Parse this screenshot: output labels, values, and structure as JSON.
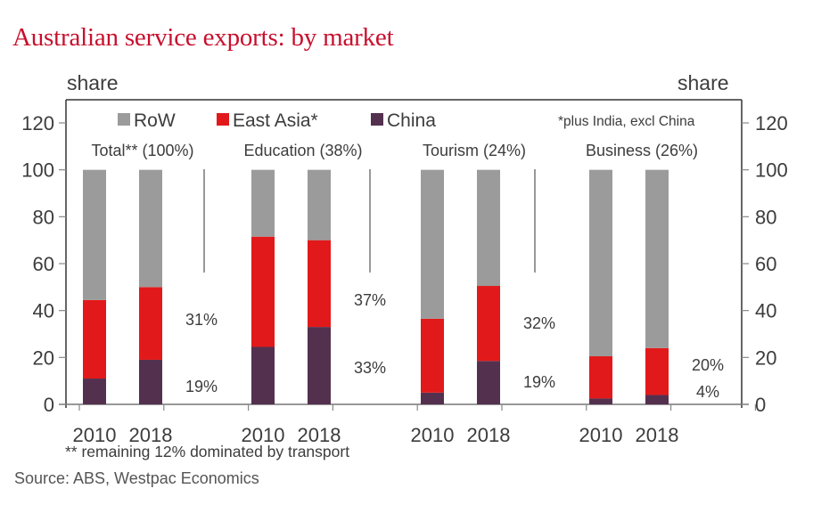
{
  "chart_data": {
    "type": "bar",
    "stacked": true,
    "title": "Australian service exports: by market",
    "ylabel_left": "share",
    "ylabel_right": "share",
    "ylim": [
      0,
      120
    ],
    "yticks": [
      0,
      20,
      40,
      60,
      80,
      100,
      120
    ],
    "grid": false,
    "legend_position": "top",
    "legend_note": "*plus India, excl China",
    "groups": [
      {
        "label": "Total** (100%)",
        "labels_2018": {
          "east_asia": "31%",
          "china": "19%"
        }
      },
      {
        "label": "Education (38%)",
        "labels_2018": {
          "east_asia": "37%",
          "china": "33%"
        }
      },
      {
        "label": "Tourism (24%)",
        "labels_2018": {
          "east_asia": "32%",
          "china": "19%"
        }
      },
      {
        "label": "Business (26%)",
        "labels_2018": {
          "east_asia": "20%",
          "china": "4%"
        }
      }
    ],
    "categories": [
      "2010",
      "2018"
    ],
    "series": [
      {
        "name": "China",
        "color": "#54304f",
        "values": [
          [
            11,
            19
          ],
          [
            24.5,
            33
          ],
          [
            5,
            18.5
          ],
          [
            2.5,
            4
          ]
        ]
      },
      {
        "name": "East Asia*",
        "color": "#e2191a",
        "values": [
          [
            33.5,
            31
          ],
          [
            47,
            37
          ],
          [
            31.5,
            32
          ],
          [
            18,
            20
          ]
        ]
      },
      {
        "name": "RoW",
        "color": "#9b9b9b",
        "values": [
          [
            55.5,
            50
          ],
          [
            28.5,
            30
          ],
          [
            63.5,
            49.5
          ],
          [
            79.5,
            76
          ]
        ]
      }
    ],
    "legend_order": [
      "RoW",
      "East Asia*",
      "China"
    ]
  },
  "footnote": "** remaining 12% dominated by transport",
  "source": "Source: ABS, Westpac Economics",
  "colors": {
    "title": "#c8102e",
    "row": "#9b9b9b",
    "east_asia": "#e2191a",
    "china": "#54304f"
  }
}
